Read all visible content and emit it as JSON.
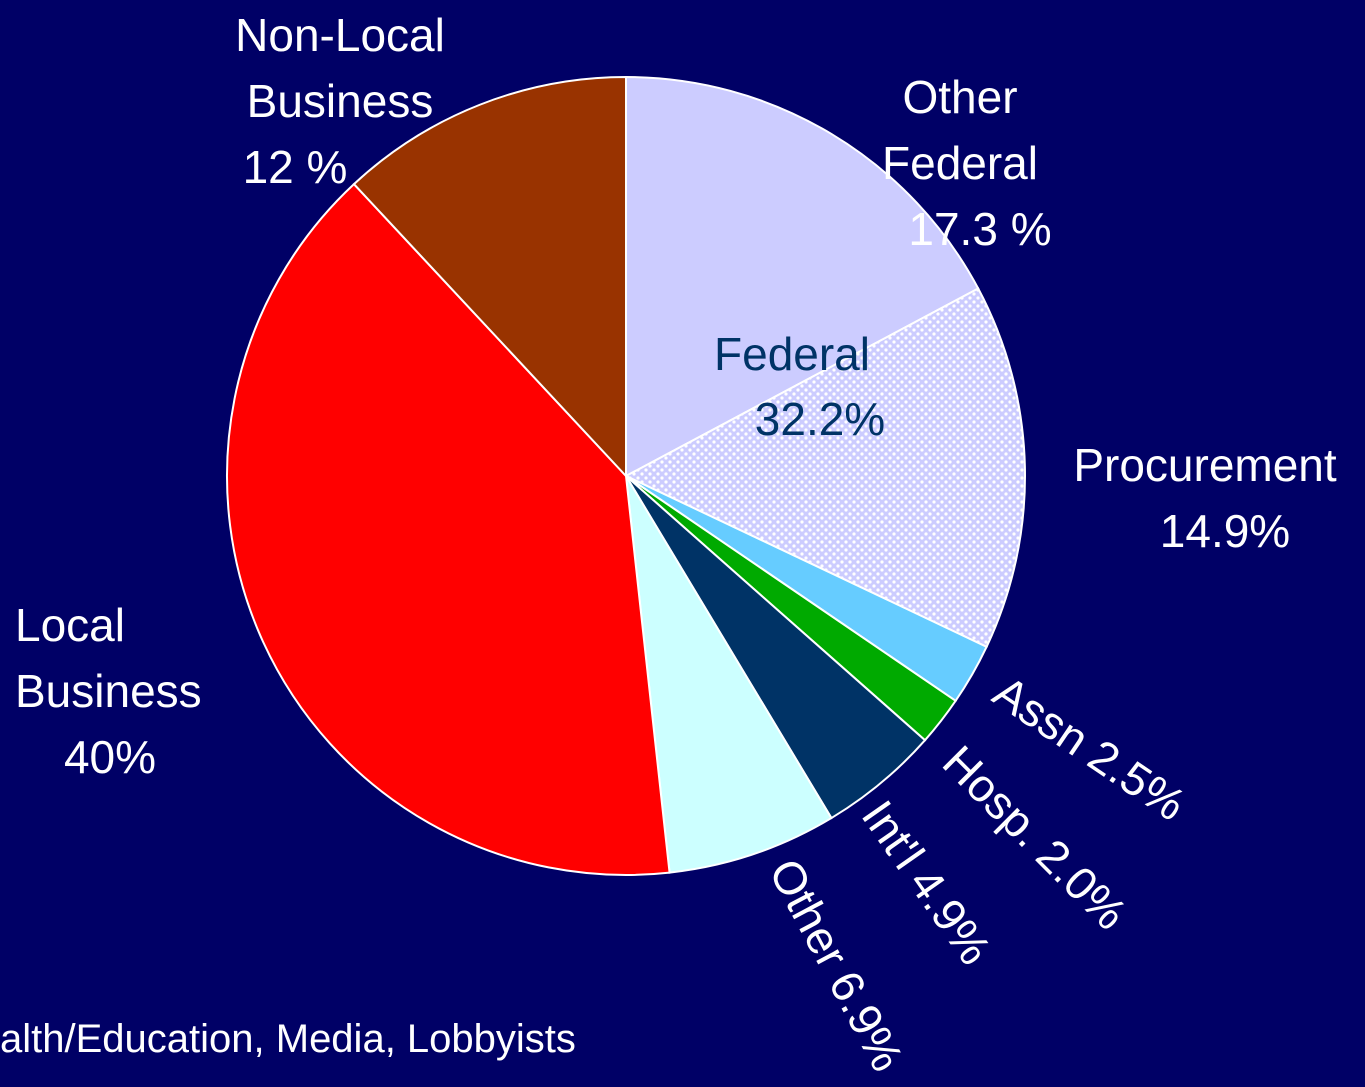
{
  "chart_data": {
    "type": "pie",
    "categories": [
      "Other Federal",
      "Procurement",
      "Assn",
      "Hosp.",
      "Int'l",
      "Other",
      "Local Business",
      "Non-Local Business"
    ],
    "values": [
      17.3,
      14.9,
      2.5,
      2.0,
      4.9,
      6.9,
      40,
      12
    ],
    "value_labels": [
      "17.3 %",
      "14.9%",
      "2.5%",
      "2.0%",
      "4.9%",
      "6.9%",
      "40%",
      "12 %"
    ],
    "colors": [
      "#ccccff",
      "pattern",
      "#66ccff",
      "#00aa00",
      "#003366",
      "#ccffff",
      "#ff0000",
      "#993300"
    ],
    "annotations": [
      {
        "text": "Federal",
        "value_label": "32.2%"
      }
    ],
    "footnote": "alth/Education, Media, Lobbyists"
  }
}
